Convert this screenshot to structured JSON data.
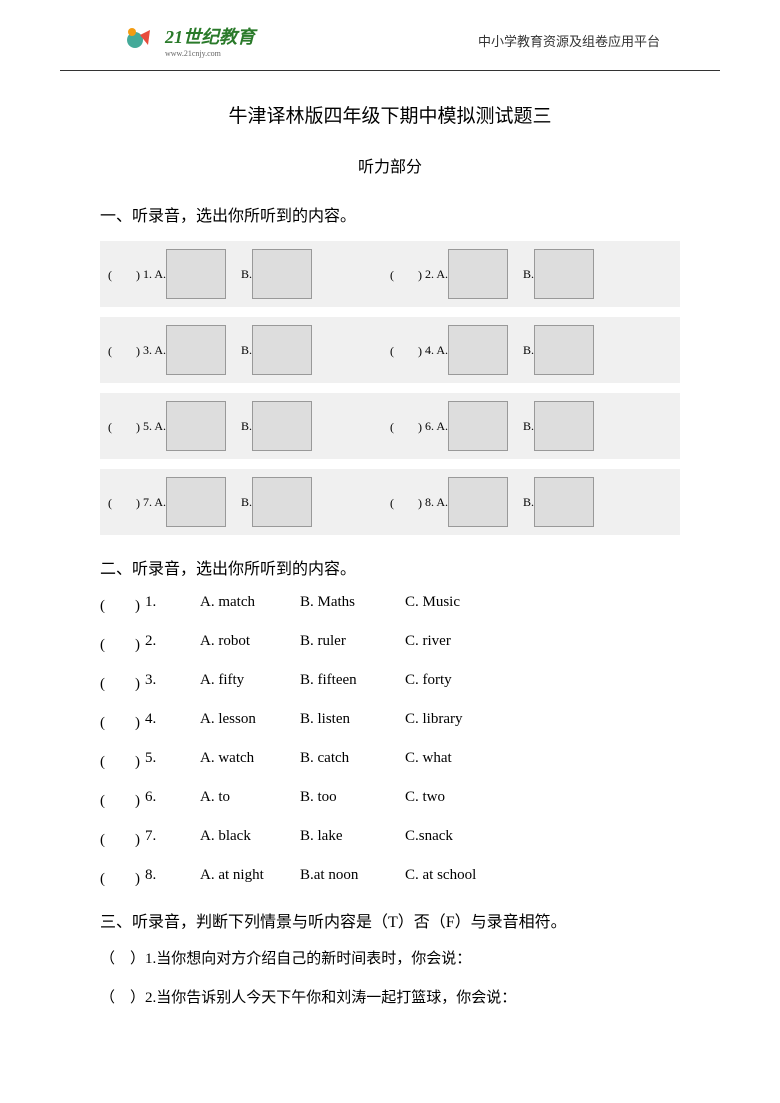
{
  "header": {
    "logo_main": "21世纪教育",
    "logo_sub": "www.21cnjy.com",
    "right_text": "中小学教育资源及组卷应用平台"
  },
  "title": "牛津译林版四年级下期中模拟测试题三",
  "subtitle": "听力部分",
  "section1": {
    "header": "一、听录音，选出你所听到的内容。",
    "rows": [
      {
        "left_num": "1",
        "right_num": "2"
      },
      {
        "left_num": "3",
        "right_num": "4"
      },
      {
        "left_num": "5",
        "right_num": "6"
      },
      {
        "left_num": "7",
        "right_num": "8"
      }
    ]
  },
  "section2": {
    "header": "二、听录音，选出你所听到的内容。",
    "questions": [
      {
        "num": "1",
        "a": "A. match",
        "b": "B. Maths",
        "c": "C. Music"
      },
      {
        "num": "2",
        "a": "A. robot",
        "b": "B. ruler",
        "c": "C. river"
      },
      {
        "num": "3",
        "a": "A. fifty",
        "b": "B. fifteen",
        "c": "C. forty"
      },
      {
        "num": "4",
        "a": "A. lesson",
        "b": "B. listen",
        "c": "C. library"
      },
      {
        "num": "5",
        "a": "A. watch",
        "b": "B. catch",
        "c": "C. what"
      },
      {
        "num": "6",
        "a": "A. to",
        "b": "B. too",
        "c": "C. two"
      },
      {
        "num": "7",
        "a": "A. black",
        "b": "B. lake",
        "c": "C.snack"
      },
      {
        "num": "8",
        "a": "A. at night",
        "b": "B.at noon",
        "c": "C. at school"
      }
    ]
  },
  "section3": {
    "header": "三、听录音，判断下列情景与听内容是（T）否（F）与录音相符。",
    "items": [
      {
        "num": "1",
        "text": "当你想向对方介绍自己的新时间表时，你会说："
      },
      {
        "num": "2",
        "text": "当你告诉别人今天下午你和刘涛一起打篮球，你会说："
      }
    ]
  },
  "colors": {
    "logo_green": "#2a7a2a",
    "text_color": "#333333",
    "strip_bg": "#f0f0f0",
    "border_color": "#999999"
  }
}
